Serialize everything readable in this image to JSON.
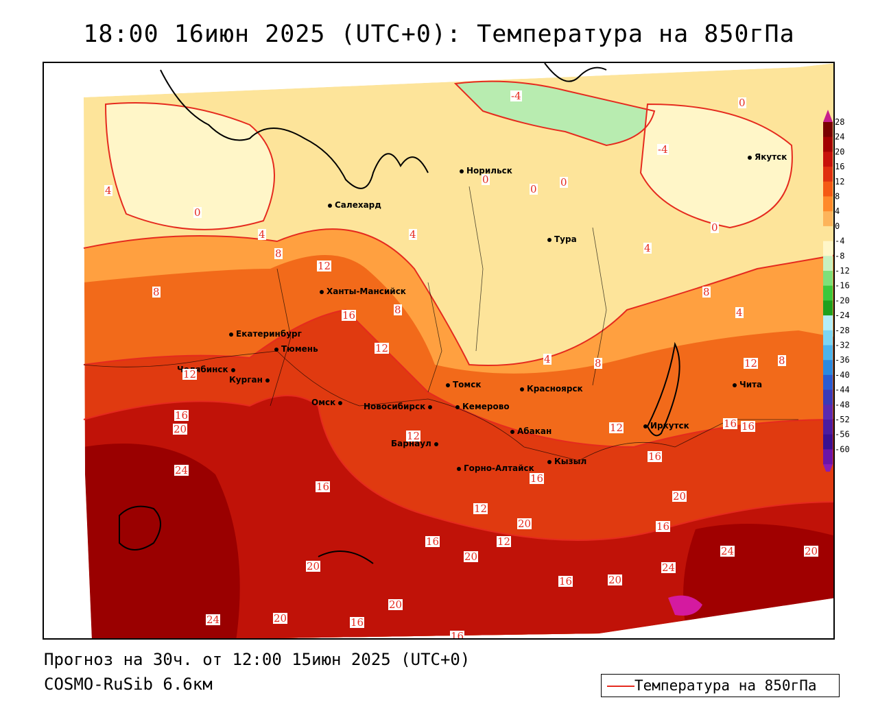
{
  "title": "18:00 16июн 2025 (UTC+0): Температура на 850гПа",
  "footer": {
    "forecast": "Прогноз на 30ч. от 12:00 15июн 2025 (UTC+0)",
    "model": "COSMO-RuSib 6.6км"
  },
  "legend": {
    "label": "Температура на 850гПа",
    "line_color": "#e52a1e"
  },
  "colorbar": {
    "ticks": [
      "28",
      "24",
      "20",
      "16",
      "12",
      "8",
      "4",
      "0",
      "-4",
      "-8",
      "-12",
      "-16",
      "-20",
      "-24",
      "-28",
      "-32",
      "-36",
      "-40",
      "-44",
      "-48",
      "-52",
      "-56",
      "-60"
    ],
    "colors": [
      "#7a0000",
      "#a30000",
      "#c8120a",
      "#e0300f",
      "#f55a14",
      "#ff8a2a",
      "#fdb45a",
      "#fde49a",
      "#fff6c8",
      "#c8f0c0",
      "#7ee07a",
      "#3cc83c",
      "#1ea01e",
      "#b4eef8",
      "#7cd6f4",
      "#4cb4ec",
      "#2a8ae0",
      "#2a5cd0",
      "#3a3ab8",
      "#5a2ab0",
      "#4a1ca0",
      "#3a1090",
      "#6a14a8"
    ],
    "top_arrow_color": "#c81e8c",
    "bottom_arrow_color": "#8a1cb4"
  },
  "cities": [
    {
      "name": "Норильск"
    },
    {
      "name": "Якутск"
    },
    {
      "name": "Салехард"
    },
    {
      "name": "Тура"
    },
    {
      "name": "Ханты-Мансийск"
    },
    {
      "name": "Екатеринбург"
    },
    {
      "name": "Тюмень"
    },
    {
      "name": "Челябинск"
    },
    {
      "name": "Курган"
    },
    {
      "name": "Омск"
    },
    {
      "name": "Новосибирск"
    },
    {
      "name": "Томск"
    },
    {
      "name": "Кемерово"
    },
    {
      "name": "Красноярск"
    },
    {
      "name": "Барнаул"
    },
    {
      "name": "Абакан"
    },
    {
      "name": "Горно-Алтайск"
    },
    {
      "name": "Кызыл"
    },
    {
      "name": "Иркутск"
    },
    {
      "name": "Чита"
    }
  ],
  "contour_labels": [
    "-4",
    "0",
    "-4",
    "0",
    "4",
    "0",
    "0",
    "0",
    "4",
    "4",
    "8",
    "0",
    "4",
    "12",
    "8",
    "16",
    "8",
    "8",
    "4",
    "12",
    "4",
    "8",
    "12",
    "12",
    "8",
    "16",
    "16",
    "20",
    "12",
    "16",
    "12",
    "16",
    "16",
    "12",
    "24",
    "16",
    "20",
    "16",
    "20",
    "16",
    "20",
    "12",
    "20",
    "24",
    "20",
    "24",
    "20",
    "16",
    "24",
    "20",
    "16",
    "20",
    "16"
  ]
}
